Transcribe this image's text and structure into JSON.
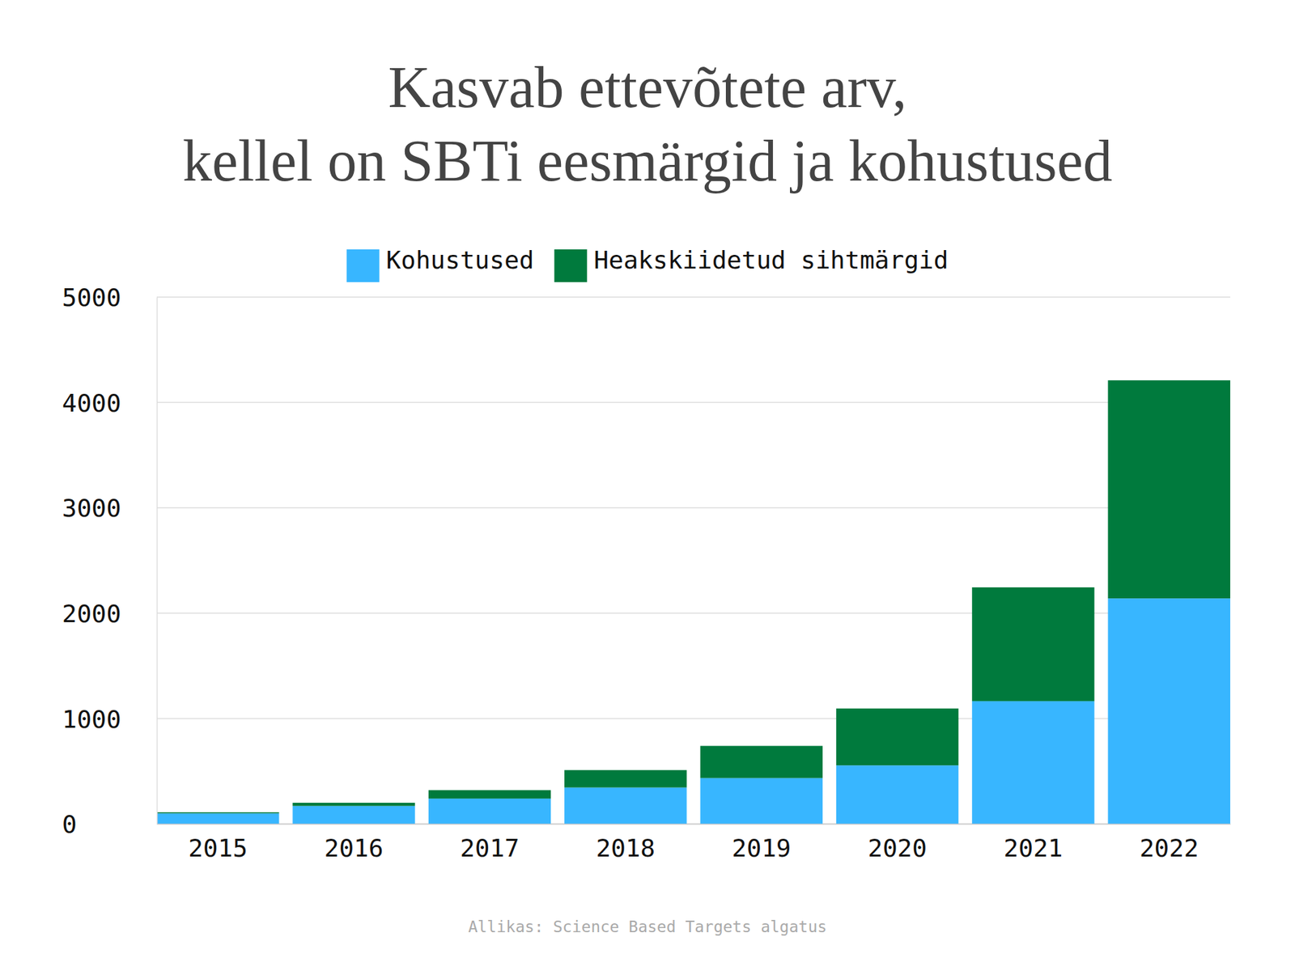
{
  "chart_data": {
    "type": "bar",
    "title": "Kasvab ettevõtete arv,\nkellel on SBTi eesmärgid ja kohustused",
    "source": "Allikas: Science Based Targets algatus",
    "categories": [
      "2015",
      "2016",
      "2017",
      "2018",
      "2019",
      "2020",
      "2021",
      "2022"
    ],
    "series": [
      {
        "name": "Kohustused",
        "color": "#38b6ff",
        "values": [
          100,
          170,
          240,
          345,
          435,
          555,
          1165,
          2140
        ]
      },
      {
        "name": "Heakskiidetud sihtmärgid",
        "color": "#007a3d",
        "values": [
          10,
          30,
          80,
          165,
          305,
          540,
          1080,
          2070
        ]
      }
    ],
    "stacked": true,
    "ylim": [
      0,
      5000
    ],
    "yticks": [
      0,
      1000,
      2000,
      3000,
      4000,
      5000
    ],
    "grid": true,
    "legend": "top"
  }
}
